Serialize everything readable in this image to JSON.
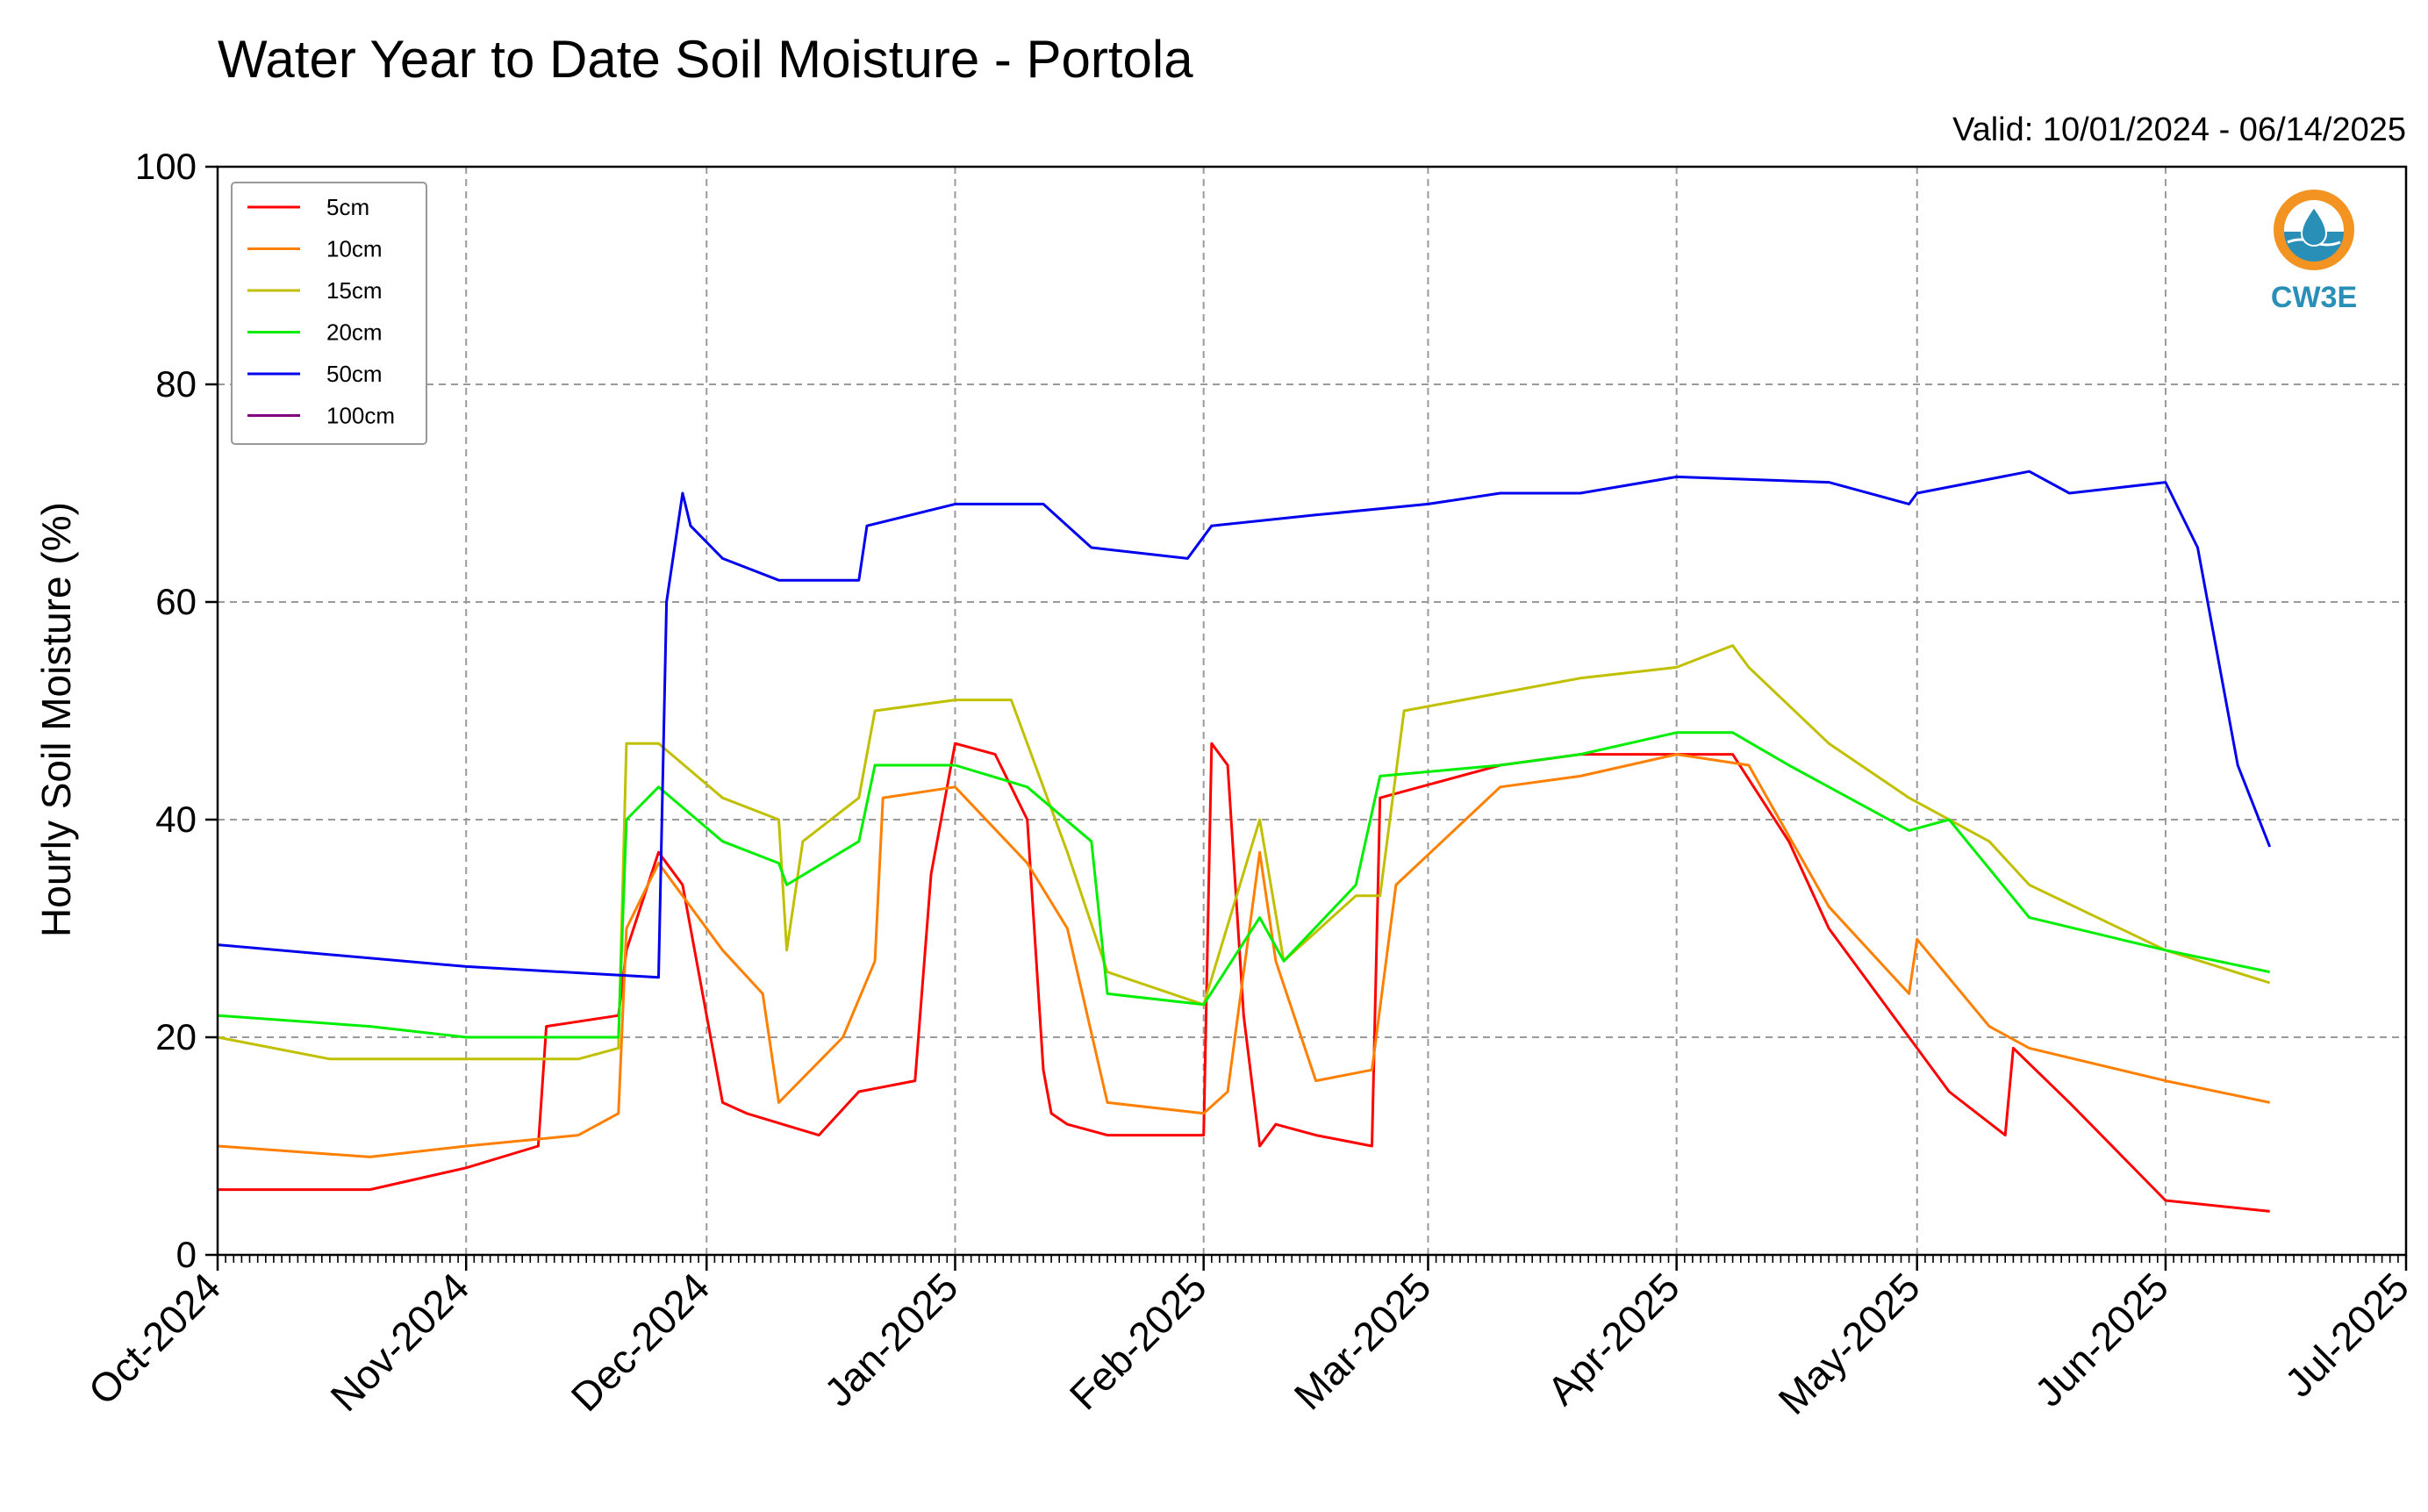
{
  "chart_data": {
    "type": "line",
    "title": "Water Year to Date Soil Moisture - Portola",
    "subtitle": "Valid: 10/01/2024 - 06/14/2025",
    "ylabel": "Hourly Soil Moisture (%)",
    "xlabel": "",
    "ylim": [
      0,
      100
    ],
    "yticks": [
      0,
      20,
      40,
      60,
      80,
      100
    ],
    "xlim": [
      "2024-10-01",
      "2025-07-01"
    ],
    "xticks": [
      {
        "date": "2024-10-01",
        "label": "Oct-2024"
      },
      {
        "date": "2024-11-01",
        "label": "Nov-2024"
      },
      {
        "date": "2024-12-01",
        "label": "Dec-2024"
      },
      {
        "date": "2025-01-01",
        "label": "Jan-2025"
      },
      {
        "date": "2025-02-01",
        "label": "Feb-2025"
      },
      {
        "date": "2025-03-01",
        "label": "Mar-2025"
      },
      {
        "date": "2025-04-01",
        "label": "Apr-2025"
      },
      {
        "date": "2025-05-01",
        "label": "May-2025"
      },
      {
        "date": "2025-06-01",
        "label": "Jun-2025"
      },
      {
        "date": "2025-07-01",
        "label": "Jul-2025"
      }
    ],
    "grid": true,
    "legend_position": "top-left",
    "logo_text": "CW3E",
    "series": [
      {
        "name": "5cm",
        "color": "#ff0000",
        "x": [
          "2024-10-01",
          "2024-10-20",
          "2024-11-01",
          "2024-11-10",
          "2024-11-11",
          "2024-11-20",
          "2024-11-21",
          "2024-11-25",
          "2024-11-28",
          "2024-12-03",
          "2024-12-06",
          "2024-12-15",
          "2024-12-20",
          "2024-12-27",
          "2024-12-29",
          "2025-01-01",
          "2025-01-06",
          "2025-01-10",
          "2025-01-12",
          "2025-01-13",
          "2025-01-15",
          "2025-01-20",
          "2025-02-01",
          "2025-02-02",
          "2025-02-04",
          "2025-02-06",
          "2025-02-08",
          "2025-02-10",
          "2025-02-15",
          "2025-02-22",
          "2025-02-23",
          "2025-02-28",
          "2025-03-10",
          "2025-03-20",
          "2025-04-01",
          "2025-04-08",
          "2025-04-15",
          "2025-04-20",
          "2025-04-28",
          "2025-05-05",
          "2025-05-12",
          "2025-05-13",
          "2025-05-20",
          "2025-06-01",
          "2025-06-14"
        ],
        "values": [
          6,
          6,
          8,
          10,
          21,
          22,
          28,
          37,
          34,
          14,
          13,
          11,
          15,
          16,
          35,
          47,
          46,
          40,
          17,
          13,
          12,
          11,
          11,
          47,
          45,
          22,
          10,
          12,
          11,
          10,
          42,
          43,
          45,
          46,
          46,
          46,
          38,
          30,
          22,
          15,
          11,
          19,
          14,
          5,
          4
        ]
      },
      {
        "name": "10cm",
        "color": "#ff8000",
        "x": [
          "2024-10-01",
          "2024-10-20",
          "2024-11-01",
          "2024-11-15",
          "2024-11-20",
          "2024-11-21",
          "2024-11-25",
          "2024-12-03",
          "2024-12-08",
          "2024-12-10",
          "2024-12-18",
          "2024-12-22",
          "2024-12-23",
          "2025-01-01",
          "2025-01-10",
          "2025-01-15",
          "2025-01-20",
          "2025-02-01",
          "2025-02-04",
          "2025-02-08",
          "2025-02-10",
          "2025-02-15",
          "2025-02-22",
          "2025-02-25",
          "2025-03-10",
          "2025-03-20",
          "2025-04-01",
          "2025-04-10",
          "2025-04-20",
          "2025-04-30",
          "2025-05-01",
          "2025-05-10",
          "2025-05-15",
          "2025-06-01",
          "2025-06-14"
        ],
        "values": [
          10,
          9,
          10,
          11,
          13,
          30,
          36,
          28,
          24,
          14,
          20,
          27,
          42,
          43,
          36,
          30,
          14,
          13,
          15,
          37,
          27,
          16,
          17,
          34,
          43,
          44,
          46,
          45,
          32,
          24,
          29,
          21,
          19,
          16,
          14
        ]
      },
      {
        "name": "15cm",
        "color": "#c0c000",
        "x": [
          "2024-10-01",
          "2024-10-15",
          "2024-11-01",
          "2024-11-15",
          "2024-11-20",
          "2024-11-21",
          "2024-11-25",
          "2024-12-03",
          "2024-12-10",
          "2024-12-11",
          "2024-12-13",
          "2024-12-20",
          "2024-12-22",
          "2025-01-01",
          "2025-01-08",
          "2025-01-15",
          "2025-01-20",
          "2025-02-01",
          "2025-02-08",
          "2025-02-11",
          "2025-02-20",
          "2025-02-23",
          "2025-02-26",
          "2025-03-20",
          "2025-04-01",
          "2025-04-08",
          "2025-04-10",
          "2025-04-20",
          "2025-04-30",
          "2025-05-10",
          "2025-05-15",
          "2025-06-01",
          "2025-06-14"
        ],
        "values": [
          20,
          18,
          18,
          18,
          19,
          47,
          47,
          42,
          40,
          28,
          38,
          42,
          50,
          51,
          51,
          37,
          26,
          23,
          40,
          27,
          33,
          33,
          50,
          53,
          54,
          56,
          54,
          47,
          42,
          38,
          34,
          28,
          25
        ]
      },
      {
        "name": "20cm",
        "color": "#00ee00",
        "x": [
          "2024-10-01",
          "2024-10-20",
          "2024-11-01",
          "2024-11-15",
          "2024-11-20",
          "2024-11-21",
          "2024-11-25",
          "2024-12-03",
          "2024-12-10",
          "2024-12-11",
          "2024-12-20",
          "2024-12-22",
          "2025-01-01",
          "2025-01-10",
          "2025-01-18",
          "2025-01-20",
          "2025-02-01",
          "2025-02-08",
          "2025-02-11",
          "2025-02-20",
          "2025-02-23",
          "2025-03-10",
          "2025-03-20",
          "2025-04-01",
          "2025-04-08",
          "2025-04-15",
          "2025-04-30",
          "2025-05-05",
          "2025-05-15",
          "2025-06-01",
          "2025-06-14"
        ],
        "values": [
          22,
          21,
          20,
          20,
          20,
          40,
          43,
          38,
          36,
          34,
          38,
          45,
          45,
          43,
          38,
          24,
          23,
          31,
          27,
          34,
          44,
          45,
          46,
          48,
          48,
          45,
          39,
          40,
          31,
          28,
          26
        ]
      },
      {
        "name": "50cm",
        "color": "#0000ee",
        "x": [
          "2024-10-01",
          "2024-11-01",
          "2024-11-25",
          "2024-11-26",
          "2024-11-28",
          "2024-11-29",
          "2024-12-03",
          "2024-12-10",
          "2024-12-20",
          "2024-12-21",
          "2025-01-01",
          "2025-01-12",
          "2025-01-18",
          "2025-01-30",
          "2025-02-02",
          "2025-02-15",
          "2025-03-01",
          "2025-03-10",
          "2025-03-20",
          "2025-04-01",
          "2025-04-20",
          "2025-04-30",
          "2025-05-01",
          "2025-05-15",
          "2025-05-20",
          "2025-06-01",
          "2025-06-05",
          "2025-06-10",
          "2025-06-14"
        ],
        "values": [
          28.5,
          26.5,
          25.5,
          60,
          70,
          67,
          64,
          62,
          62,
          67,
          69,
          69,
          65,
          64,
          67,
          68,
          69,
          70,
          70,
          71.5,
          71,
          69,
          70,
          72,
          70,
          71,
          65,
          45,
          37.5
        ]
      },
      {
        "name": "100cm",
        "color": "#800080",
        "x": [],
        "values": []
      }
    ]
  }
}
